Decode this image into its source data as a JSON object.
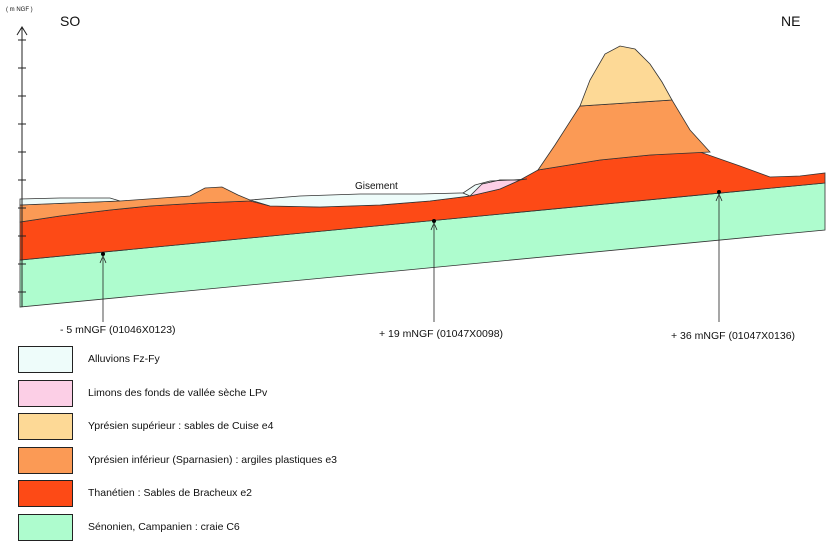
{
  "axis": {
    "unit_label": "( m NGF )"
  },
  "orientation": {
    "left": "SO",
    "right": "NE"
  },
  "gisement_label": "Gisement",
  "boreholes": [
    {
      "label": "- 5 mNGF (01046X0123)"
    },
    {
      "label": "+ 19 mNGF (01047X0098)"
    },
    {
      "label": "+ 36 mNGF (01047X0136)"
    }
  ],
  "legend": [
    {
      "label": "Alluvions    Fz-Fy",
      "color": "#eefcfa"
    },
    {
      "label": "Limons des fonds de vallée sèche    LPv",
      "color": "#fccfe6"
    },
    {
      "label": "Yprésien supérieur : sables de Cuise e4",
      "color": "#fdd996"
    },
    {
      "label": "Yprésien inférieur (Sparnasien) : argiles plastiques e3",
      "color": "#fb9a55"
    },
    {
      "label": "Thanétien : Sables de Bracheux e2",
      "color": "#fd4a16"
    },
    {
      "label": "Sénonien, Campanien : craie C6",
      "color": "#aefcce"
    }
  ]
}
